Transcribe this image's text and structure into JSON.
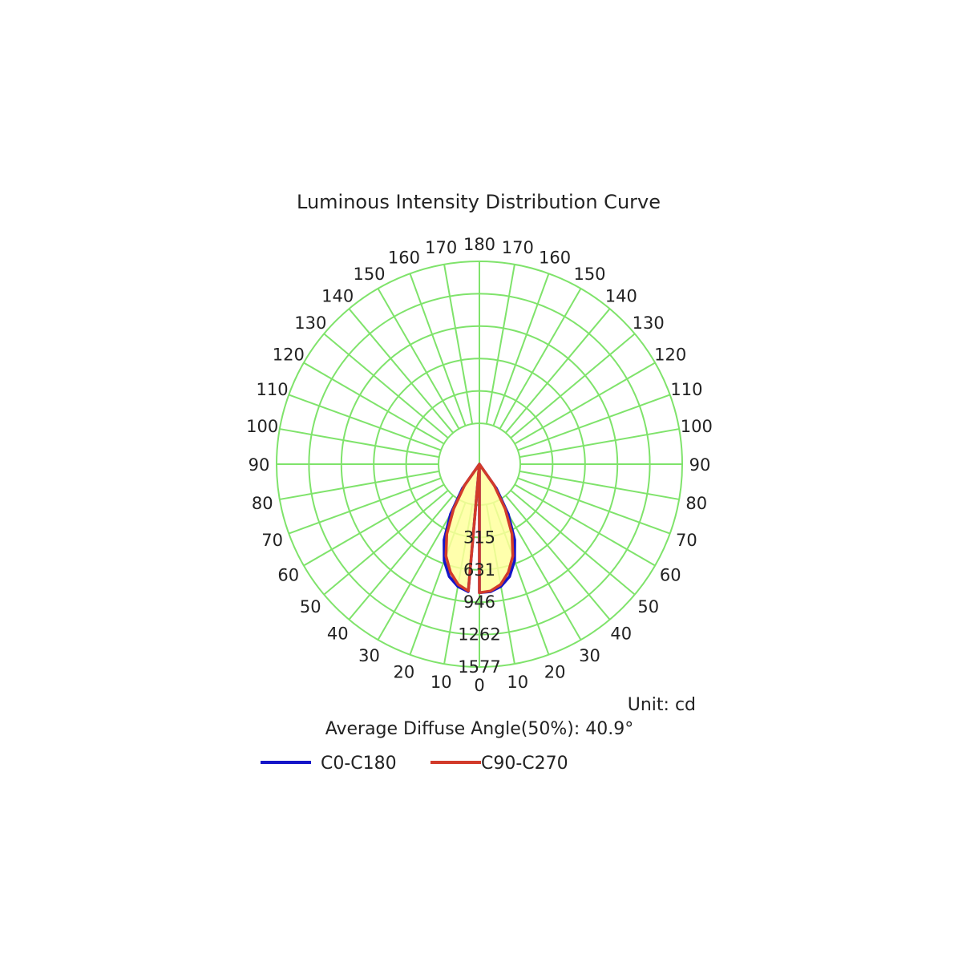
{
  "chart_data": {
    "type": "polar",
    "title": "Luminous Intensity Distribution Curve",
    "unit_label": "Unit: cd",
    "angle_note": "Average Diffuse Angle(50%): 40.9°",
    "r_max": 1577,
    "ring_labels": [
      "315",
      "631",
      "946",
      "1262",
      "1577"
    ],
    "angle_labels_right": [
      "0",
      "10",
      "20",
      "30",
      "40",
      "50",
      "60",
      "70",
      "80",
      "90",
      "100",
      "110",
      "120",
      "130",
      "140",
      "150",
      "160",
      "170",
      "180"
    ],
    "angle_labels_left": [
      "10",
      "20",
      "30",
      "40",
      "50",
      "60",
      "70",
      "80",
      "90",
      "100",
      "110",
      "120",
      "130",
      "140",
      "150",
      "160",
      "170"
    ],
    "grid": true,
    "grid_color": "#7fe36b",
    "fill_color": "#ffff9c",
    "series": [
      {
        "name": "C0-C180",
        "color": "#1515c8",
        "angles": [
          0,
          5,
          10,
          15,
          20,
          25,
          30,
          35,
          40
        ],
        "values": [
          1000,
          995,
          965,
          905,
          800,
          650,
          450,
          230,
          0
        ]
      },
      {
        "name": "C90-C270",
        "color": "#d23a2a",
        "angles": [
          0,
          5,
          10,
          15,
          20,
          25,
          30,
          35,
          40
        ],
        "values": [
          1000,
          990,
          950,
          870,
          760,
          600,
          400,
          200,
          0
        ]
      }
    ]
  }
}
